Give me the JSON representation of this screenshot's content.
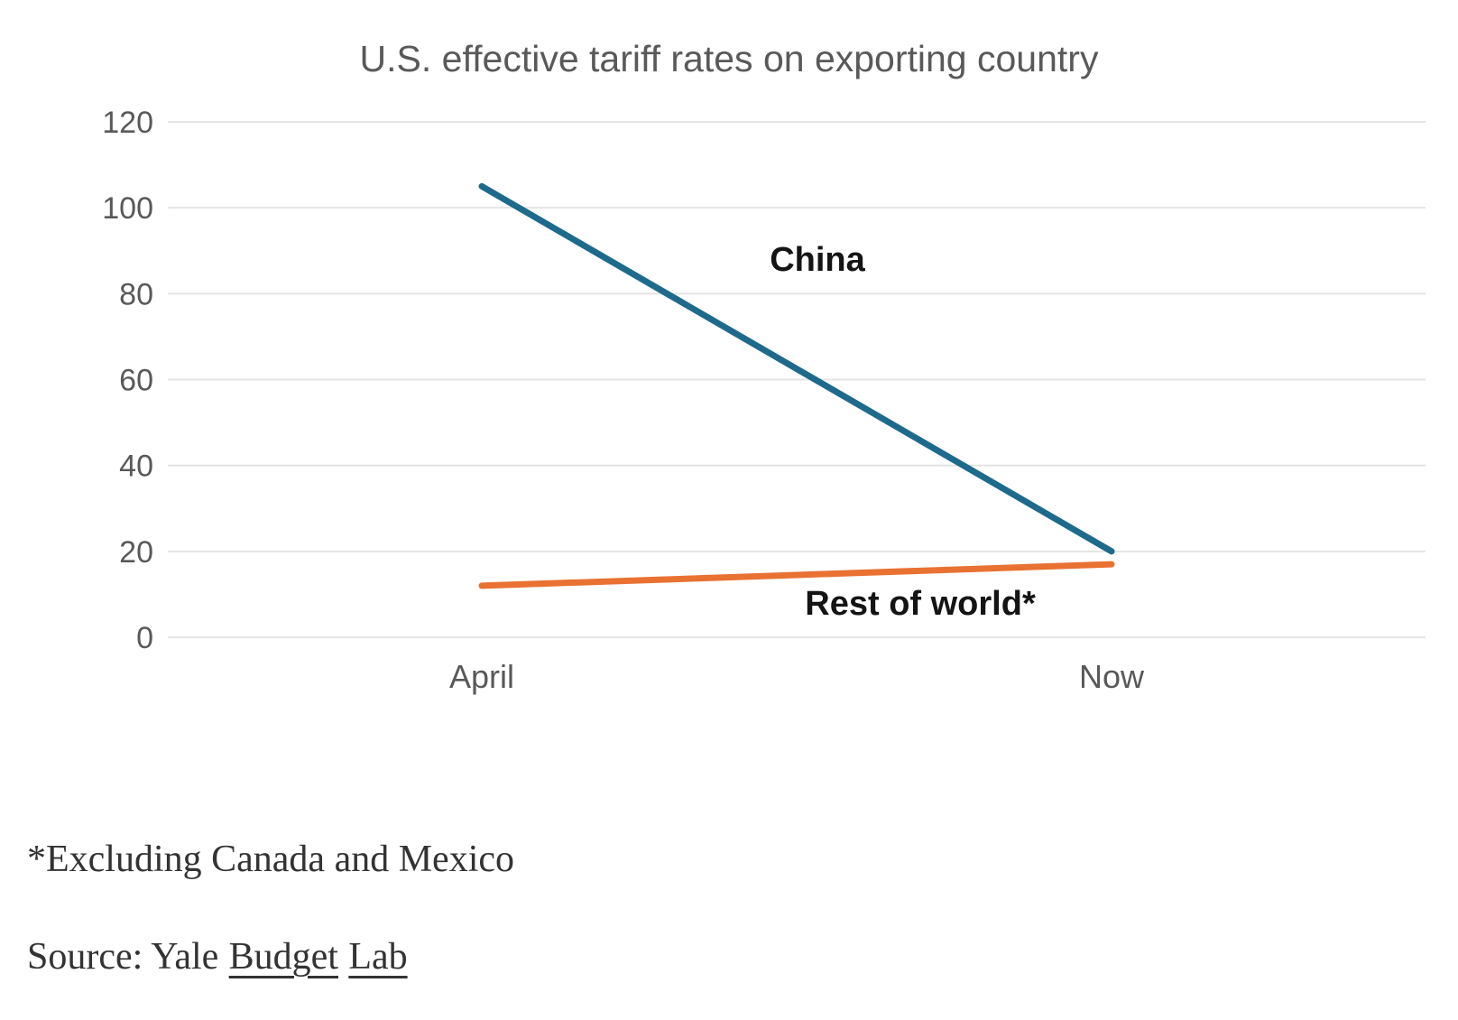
{
  "page": {
    "background": "#ffffff"
  },
  "chart_data": {
    "type": "line",
    "title": "U.S. effective tariff rates on exporting country",
    "categories": [
      "April",
      "Now"
    ],
    "series": [
      {
        "name": "China",
        "values": [
          105,
          20
        ],
        "color": "#1E6A8C"
      },
      {
        "name": "Rest of world*",
        "values": [
          12,
          17
        ],
        "color": "#E97132"
      }
    ],
    "ylim": [
      0,
      120
    ],
    "yticks": [
      120,
      100,
      80,
      60,
      40,
      20,
      0
    ],
    "xlabel": "",
    "ylabel": "",
    "grid": "horizontal-only",
    "legend": "direct-line-labels",
    "axis_text_color": "#595959",
    "gridline_color": "#e4e4e4"
  },
  "footnote": {
    "text": "*Excluding Canada and Mexico"
  },
  "source": {
    "prefix": "Source: Yale",
    "links": [
      {
        "label": "Budget"
      },
      {
        "label": "Lab"
      }
    ]
  }
}
